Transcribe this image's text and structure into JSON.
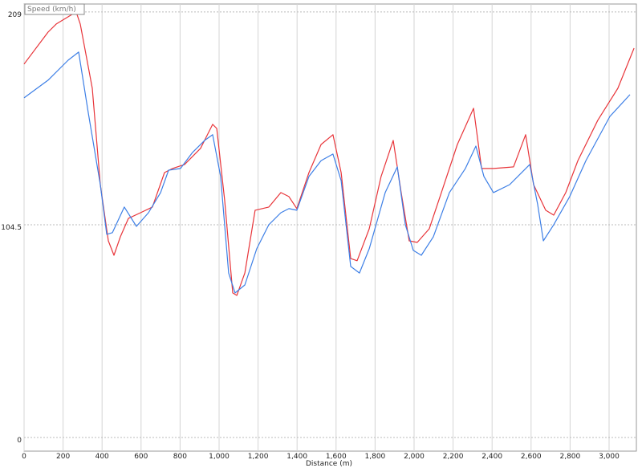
{
  "chart_data": {
    "type": "line",
    "y_label": "Speed (km/h)",
    "x_label": "Distance (m)",
    "xlim": [
      0,
      3140
    ],
    "ylim": [
      -6.7,
      212.9
    ],
    "xticks": [
      0,
      200,
      400,
      600,
      800,
      {
        "value": 1000,
        "label": "1,000"
      },
      {
        "value": 1200,
        "label": "1,200"
      },
      {
        "value": 1400,
        "label": "1,400"
      },
      {
        "value": 1600,
        "label": "1,600"
      },
      {
        "value": 1800,
        "label": "1,800"
      },
      {
        "value": 2000,
        "label": "2,000"
      },
      {
        "value": 2200,
        "label": "2,200"
      },
      {
        "value": 2400,
        "label": "2,400"
      },
      {
        "value": 2600,
        "label": "2,600"
      },
      {
        "value": 2800,
        "label": "2,800"
      },
      {
        "value": 3000,
        "label": "3,000"
      }
    ],
    "yticks": [
      0,
      104.5,
      209
    ],
    "grid": true,
    "series": [
      {
        "color": "#e8353a",
        "x": [
          0,
          123,
          165,
          267,
          288,
          350,
          391,
          432,
          461,
          494,
          535,
          597,
          658,
          720,
          761,
          823,
          905,
          967,
          988,
          1029,
          1070,
          1091,
          1132,
          1185,
          1255,
          1317,
          1358,
          1399,
          1461,
          1523,
          1584,
          1626,
          1675,
          1708,
          1770,
          1831,
          1893,
          1934,
          1975,
          2016,
          2078,
          2140,
          2222,
          2305,
          2346,
          2407,
          2510,
          2572,
          2613,
          2675,
          2716,
          2778,
          2840,
          2942,
          3045,
          3128
        ],
        "values": [
          183.4,
          199.1,
          203.1,
          209.0,
          203.1,
          171.5,
          124.2,
          96.6,
          89.5,
          98.6,
          107.6,
          110.4,
          113.2,
          130.1,
          132.1,
          134.1,
          142.0,
          153.8,
          151.8,
          116.3,
          71.0,
          69.8,
          80.8,
          111.6,
          113.2,
          120.3,
          118.3,
          112.4,
          130.1,
          143.9,
          148.7,
          130.1,
          87.9,
          86.8,
          102.5,
          128.2,
          145.9,
          120.3,
          96.6,
          95.8,
          102.5,
          120.3,
          143.9,
          161.7,
          132.1,
          132.1,
          132.9,
          148.7,
          124.2,
          111.6,
          109.2,
          120.3,
          136.0,
          155.8,
          171.5,
          191.2
        ]
      },
      {
        "color": "#3d7fe6",
        "x": [
          0,
          123,
          226,
          280,
          329,
          391,
          424,
          453,
          514,
          576,
          638,
          700,
          741,
          802,
          864,
          926,
          967,
          1008,
          1049,
          1082,
          1132,
          1193,
          1255,
          1317,
          1358,
          1399,
          1461,
          1523,
          1584,
          1626,
          1675,
          1720,
          1770,
          1852,
          1914,
          1955,
          1996,
          2037,
          2099,
          2181,
          2263,
          2317,
          2358,
          2407,
          2490,
          2593,
          2634,
          2663,
          2716,
          2798,
          2881,
          3004,
          3107
        ],
        "values": [
          166.8,
          175.5,
          185.3,
          189.3,
          159.7,
          124.2,
          99.8,
          100.6,
          113.2,
          103.7,
          110.4,
          120.3,
          131.3,
          132.1,
          140.0,
          145.9,
          148.7,
          128.2,
          80.8,
          71.0,
          74.9,
          92.7,
          104.5,
          110.4,
          112.4,
          111.6,
          128.2,
          136.0,
          139.2,
          126.2,
          84.0,
          80.8,
          92.7,
          120.3,
          132.9,
          104.5,
          91.9,
          89.5,
          98.6,
          120.3,
          132.1,
          143.1,
          128.2,
          120.3,
          124.2,
          134.1,
          114.4,
          96.6,
          104.5,
          118.3,
          136.0,
          157.7,
          168.4
        ]
      }
    ]
  }
}
